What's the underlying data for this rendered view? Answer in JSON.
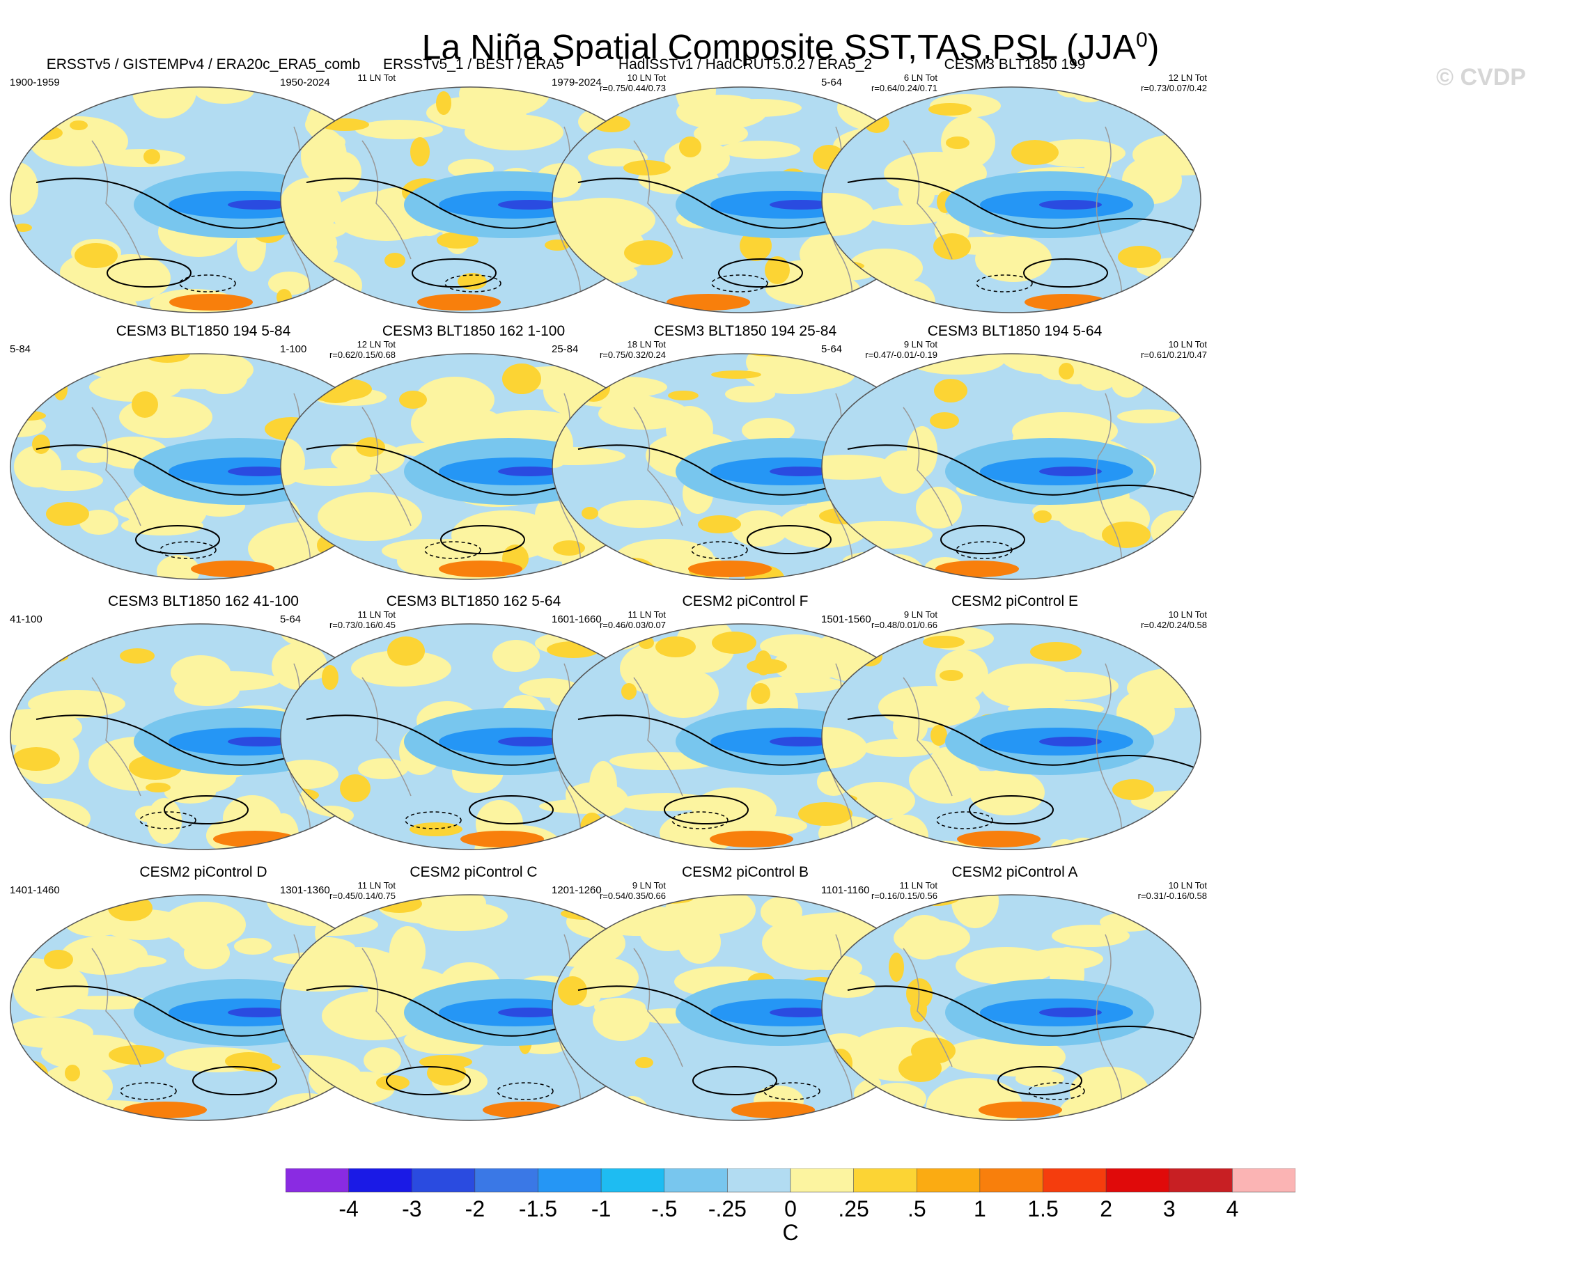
{
  "title": "La Niña Spatial Composite SST,TAS,PSL (JJA",
  "title_sup": "0",
  "title_end": ")",
  "watermark": "© CVDP",
  "panels": [
    {
      "title": "ERSSTv5 / GISTEMPv4 / ERA20c_ERA5_comb",
      "period": "1900-1959",
      "count": "11 LN Tot",
      "r": ""
    },
    {
      "title": "ERSSTv5_1 / BEST / ERA5",
      "period": "1950-2024",
      "count": "10 LN Tot",
      "r": "r=0.75/0.44/0.73"
    },
    {
      "title": "HadISSTv1 / HadCRUT5.0.2 / ERA5_2",
      "period": "1979-2024",
      "count": "6 LN Tot",
      "r": "r=0.64/0.24/0.71"
    },
    {
      "title": "CESM3 BLT1850 199",
      "period": "5-64",
      "count": "12 LN Tot",
      "r": "r=0.73/0.07/0.42"
    },
    {
      "title": "CESM3 BLT1850 194 5-84",
      "period": "5-84",
      "count": "12 LN Tot",
      "r": "r=0.62/0.15/0.68"
    },
    {
      "title": "CESM3 BLT1850 162 1-100",
      "period": "1-100",
      "count": "18 LN Tot",
      "r": "r=0.75/0.32/0.24"
    },
    {
      "title": "CESM3 BLT1850 194 25-84",
      "period": "25-84",
      "count": "9 LN Tot",
      "r": "r=0.47/-0.01/-0.19"
    },
    {
      "title": "CESM3 BLT1850 194 5-64",
      "period": "5-64",
      "count": "10 LN Tot",
      "r": "r=0.61/0.21/0.47"
    },
    {
      "title": "CESM3 BLT1850 162 41-100",
      "period": "41-100",
      "count": "11 LN Tot",
      "r": "r=0.73/0.16/0.45"
    },
    {
      "title": "CESM3 BLT1850 162 5-64",
      "period": "5-64",
      "count": "11 LN Tot",
      "r": "r=0.46/0.03/0.07"
    },
    {
      "title": "CESM2 piControl F",
      "period": "1601-1660",
      "count": "9 LN Tot",
      "r": "r=0.48/0.01/0.66"
    },
    {
      "title": "CESM2 piControl E",
      "period": "1501-1560",
      "count": "10 LN Tot",
      "r": "r=0.42/0.24/0.58"
    },
    {
      "title": "CESM2 piControl D",
      "period": "1401-1460",
      "count": "11 LN Tot",
      "r": "r=0.45/0.14/0.75"
    },
    {
      "title": "CESM2 piControl C",
      "period": "1301-1360",
      "count": "9 LN Tot",
      "r": "r=0.54/0.35/0.66"
    },
    {
      "title": "CESM2 piControl B",
      "period": "1201-1260",
      "count": "11 LN Tot",
      "r": "r=0.16/0.15/0.56"
    },
    {
      "title": "CESM2 piControl A",
      "period": "1101-1160",
      "count": "10 LN Tot",
      "r": "r=0.31/-0.16/0.58"
    }
  ],
  "colorbar": {
    "units": "C",
    "labels": [
      "-4",
      "-3",
      "-2",
      "-1.5",
      "-1",
      "-.5",
      "-.25",
      "0",
      ".25",
      ".5",
      "1",
      "1.5",
      "2",
      "3",
      "4"
    ],
    "colors": [
      "#8a2be2",
      "#1a1ae6",
      "#2a4be0",
      "#3a78e6",
      "#2596f5",
      "#1ebcf2",
      "#78c6ee",
      "#b2dcf2",
      "#fcf4a0",
      "#fcd434",
      "#fbab12",
      "#f87f0c",
      "#f53d0d",
      "#e00a0a",
      "#c81f23",
      "#fbb4b4"
    ]
  },
  "colors": {
    "map_base": "#b2dcf2",
    "map_ocean": "#b2dcf2",
    "cold": "#78c6ee",
    "colder": "#2596f5",
    "coldest": "#2a4be0",
    "warm": "#fcf4a0",
    "warmer": "#fcd434",
    "warmest": "#f87f0c"
  }
}
